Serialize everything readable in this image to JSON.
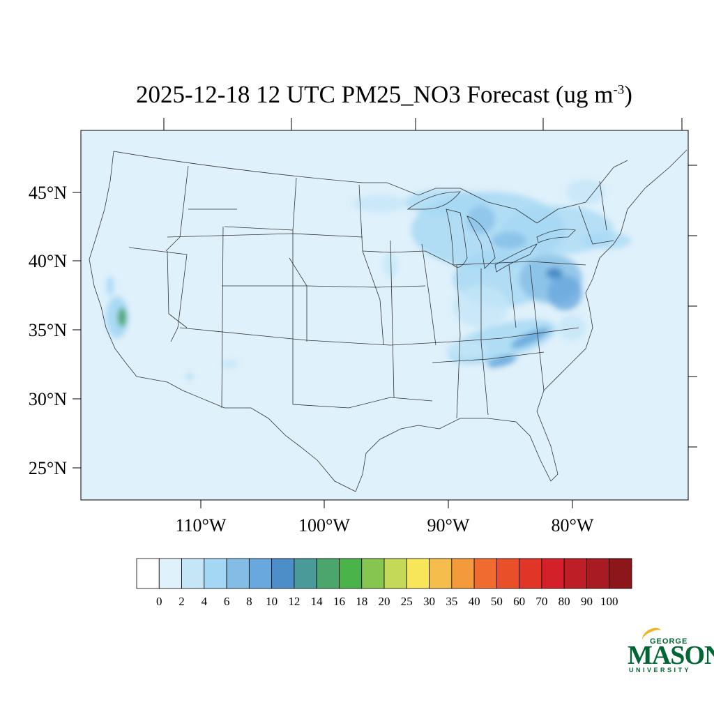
{
  "title": {
    "main": "2025-12-18 12 UTC PM25_NO3 Forecast (ug m",
    "superscript": "-3",
    "close": ")"
  },
  "map": {
    "lat_labels": [
      "45°N",
      "40°N",
      "35°N",
      "30°N",
      "25°N"
    ],
    "lon_labels": [
      "110°W",
      "100°W",
      "90°W",
      "80°W"
    ],
    "background_color": "#dff1fb",
    "boundary_color": "#333333"
  },
  "colorbar": {
    "labels": [
      "0",
      "2",
      "4",
      "6",
      "8",
      "10",
      "12",
      "14",
      "16",
      "18",
      "20",
      "25",
      "30",
      "35",
      "40",
      "50",
      "60",
      "70",
      "80",
      "90",
      "100"
    ],
    "colors": [
      "#ffffff",
      "#dff1fb",
      "#c4e6f7",
      "#a4d7f3",
      "#83bde5",
      "#68a8dc",
      "#4d8ec9",
      "#4a9a9a",
      "#4aa66c",
      "#4ab44a",
      "#86c54f",
      "#c4d957",
      "#f7e55a",
      "#f5bd4b",
      "#f39a3c",
      "#ef6c2e",
      "#e9502a",
      "#e03527",
      "#d42029",
      "#be1e25",
      "#a81b22",
      "#8c161a"
    ]
  },
  "logo": {
    "line1": "GEORGE",
    "line2": "MASON",
    "line3": "UNIVERSITY",
    "color": "#006633",
    "accent": "#f0b323"
  }
}
